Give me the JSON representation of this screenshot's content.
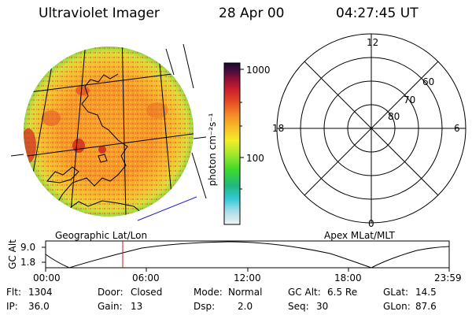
{
  "header": {
    "instrument": "Ultraviolet Imager",
    "date": "28 Apr 00",
    "time": "04:27:45 UT"
  },
  "colorbar": {
    "unit_label": "photon cm⁻²s⁻¹",
    "ticks": [
      "1000",
      "100"
    ],
    "scale": "log"
  },
  "polar": {
    "mlt_labels": [
      "12",
      "18",
      "6",
      "0"
    ],
    "lat_labels": [
      "60",
      "70",
      "80"
    ]
  },
  "panel_labels": {
    "left": "Geographic Lat/Lon",
    "right": "Apex MLat/MLT"
  },
  "altitude_plot": {
    "axis_title": "GC Alt",
    "y_ticks": [
      "9.0",
      "1.8"
    ],
    "x_ticks": [
      "00:00",
      "06:00",
      "12:00",
      "18:00",
      "23:59"
    ],
    "current_time_marker": "04:27:45"
  },
  "footer": {
    "flt_label": "Flt:",
    "flt_value": "1304",
    "ip_label": "IP:",
    "ip_value": "36.0",
    "door_label": "Door:",
    "door_value": "Closed",
    "gain_label": "Gain:",
    "gain_value": "13",
    "mode_label": "Mode:",
    "mode_value": "Normal",
    "dsp_label": "Dsp:",
    "dsp_value": "2.0",
    "gcalt_label": "GC Alt:",
    "gcalt_value": "6.5 Re",
    "seq_label": "Seq:",
    "seq_value": "30",
    "glat_label": "GLat:",
    "glat_value": "14.5",
    "glon_label": "GLon:",
    "glon_value": "87.6"
  }
}
